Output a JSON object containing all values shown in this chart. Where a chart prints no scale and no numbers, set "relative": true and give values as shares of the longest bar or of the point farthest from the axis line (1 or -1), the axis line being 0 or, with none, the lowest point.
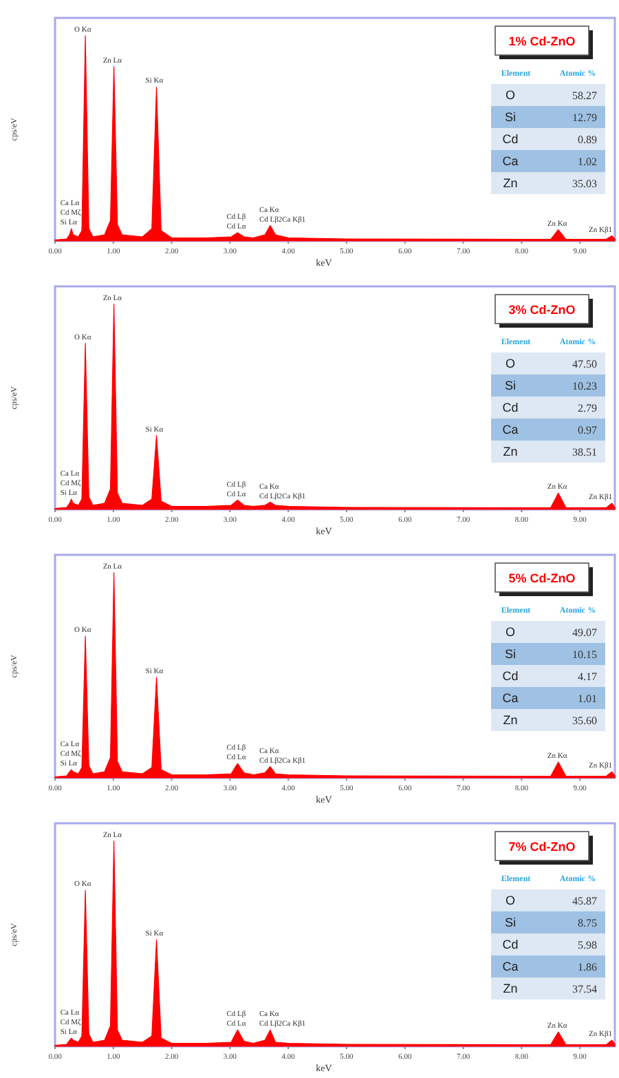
{
  "chart_data": [
    {
      "type": "area",
      "title": "1% Cd-ZnO",
      "xlabel": "keV",
      "ylabel": "cps/eV",
      "relative": true,
      "color": "#ff0000",
      "xlim": [
        0,
        9.6
      ],
      "xticks": [
        {
          "value": 0,
          "label": "0.00"
        },
        {
          "value": 1,
          "label": "1.00"
        },
        {
          "value": 2,
          "label": "2.00"
        },
        {
          "value": 3,
          "label": "3.00"
        },
        {
          "value": 4,
          "label": "4.00"
        },
        {
          "value": 5,
          "label": "5.00"
        },
        {
          "value": 6,
          "label": "6.00"
        },
        {
          "value": 7,
          "label": "7.00"
        },
        {
          "value": 8,
          "label": "8.00"
        },
        {
          "value": 9,
          "label": "9.00"
        }
      ],
      "x": [
        0,
        0.2,
        0.25,
        0.28,
        0.31,
        0.4,
        0.46,
        0.52,
        0.58,
        0.65,
        0.85,
        0.95,
        1.01,
        1.07,
        1.15,
        1.5,
        1.66,
        1.74,
        1.82,
        2.0,
        2.6,
        3.02,
        3.13,
        3.24,
        3.4,
        3.6,
        3.69,
        3.78,
        4.0,
        5.0,
        8.5,
        8.63,
        8.76,
        9.45,
        9.55,
        9.6
      ],
      "values": [
        0.005,
        0.01,
        0.03,
        0.06,
        0.03,
        0.02,
        0.05,
        1,
        0.06,
        0.02,
        0.03,
        0.1,
        0.85,
        0.08,
        0.03,
        0.02,
        0.06,
        0.75,
        0.05,
        0.015,
        0.015,
        0.02,
        0.04,
        0.02,
        0.015,
        0.03,
        0.075,
        0.03,
        0.015,
        0.01,
        0.008,
        0.055,
        0.008,
        0.008,
        0.025,
        0.01
      ],
      "annotations": [
        {
          "text": "O Kα",
          "x": 0.52,
          "y": 1
        },
        {
          "text": "Zn Lα",
          "x": 1.01,
          "y": 0.85
        },
        {
          "text": "Si Kα",
          "x": 1.74,
          "y": 0.75
        },
        {
          "text": "Ca Lα",
          "x": 0.28,
          "y": 0.06
        },
        {
          "text": "Cd Mζ",
          "x": 0.28,
          "y": 0.06
        },
        {
          "text": "Si Lα",
          "x": 0.28,
          "y": 0.06
        },
        {
          "text": "Cd Lβ",
          "x": 3.13,
          "y": 0.04
        },
        {
          "text": "Cd Lα",
          "x": 3.13,
          "y": 0.04
        },
        {
          "text": "Ca Kα",
          "x": 3.69,
          "y": 0.075
        },
        {
          "text": "Cd Lβ2Ca Kβ1",
          "x": 3.69,
          "y": 0.075
        },
        {
          "text": "Zn Kα",
          "x": 8.63,
          "y": 0.055
        },
        {
          "text": "Zn Kβ1",
          "x": 9.55,
          "y": 0.025
        }
      ]
    },
    {
      "type": "other",
      "annotations": [
        "Element",
        "Atomic %",
        "O",
        "58.27",
        "Si",
        "12.79",
        "Cd",
        "0.89",
        "Ca",
        "1.02",
        "Zn",
        "35.03"
      ]
    },
    {
      "type": "area",
      "title": "3% Cd-ZnO",
      "xlabel": "keV",
      "ylabel": "cps/eV",
      "relative": true,
      "color": "#ff0000",
      "xlim": [
        0,
        9.6
      ],
      "xticks": [
        {
          "value": 0,
          "label": "0.00"
        },
        {
          "value": 1,
          "label": "1.00"
        },
        {
          "value": 2,
          "label": "2.00"
        },
        {
          "value": 3,
          "label": "3.00"
        },
        {
          "value": 4,
          "label": "4.00"
        },
        {
          "value": 5,
          "label": "5.00"
        },
        {
          "value": 6,
          "label": "6.00"
        },
        {
          "value": 7,
          "label": "7.00"
        },
        {
          "value": 8,
          "label": "8.00"
        },
        {
          "value": 9,
          "label": "9.00"
        }
      ],
      "x": [
        0,
        0.2,
        0.25,
        0.28,
        0.31,
        0.4,
        0.46,
        0.52,
        0.58,
        0.65,
        0.85,
        0.95,
        1.01,
        1.07,
        1.15,
        1.5,
        1.66,
        1.74,
        1.82,
        2.0,
        2.6,
        3.02,
        3.13,
        3.24,
        3.4,
        3.6,
        3.69,
        3.78,
        4.0,
        5.0,
        8.5,
        8.63,
        8.76,
        9.45,
        9.55,
        9.6
      ],
      "values": [
        0.005,
        0.01,
        0.03,
        0.05,
        0.03,
        0.02,
        0.05,
        0.81,
        0.06,
        0.02,
        0.03,
        0.1,
        1,
        0.08,
        0.03,
        0.02,
        0.05,
        0.36,
        0.04,
        0.015,
        0.015,
        0.02,
        0.045,
        0.02,
        0.015,
        0.02,
        0.035,
        0.02,
        0.015,
        0.01,
        0.008,
        0.08,
        0.008,
        0.008,
        0.03,
        0.01
      ],
      "annotations": [
        {
          "text": "Zn Lα",
          "x": 1.01,
          "y": 1
        },
        {
          "text": "O Kα",
          "x": 0.52,
          "y": 0.81
        },
        {
          "text": "Si Kα",
          "x": 1.74,
          "y": 0.36
        },
        {
          "text": "Ca Lα",
          "x": 0.28,
          "y": 0.05
        },
        {
          "text": "Cd Mζ",
          "x": 0.28,
          "y": 0.05
        },
        {
          "text": "Si Lα",
          "x": 0.28,
          "y": 0.05
        },
        {
          "text": "Cd Lβ",
          "x": 3.13,
          "y": 0.045
        },
        {
          "text": "Cd Lα",
          "x": 3.13,
          "y": 0.045
        },
        {
          "text": "Ca Kα",
          "x": 3.69,
          "y": 0.035
        },
        {
          "text": "Cd Lβ2Ca Kβ1",
          "x": 3.69,
          "y": 0.035
        },
        {
          "text": "Zn Kα",
          "x": 8.63,
          "y": 0.08
        },
        {
          "text": "Zn Kβ1",
          "x": 9.55,
          "y": 0.03
        }
      ]
    },
    {
      "type": "other",
      "annotations": [
        "Element",
        "Atomic %",
        "O",
        "47.50",
        "Si",
        "10.23",
        "Cd",
        "2.79",
        "Ca",
        "0.97",
        "Zn",
        "38.51"
      ]
    },
    {
      "type": "area",
      "title": "5% Cd-ZnO",
      "xlabel": "keV",
      "ylabel": "cps/eV",
      "relative": true,
      "color": "#ff0000",
      "xlim": [
        0,
        9.6
      ],
      "xticks": [
        {
          "value": 0,
          "label": "0.00"
        },
        {
          "value": 1,
          "label": "1.00"
        },
        {
          "value": 2,
          "label": "2.00"
        },
        {
          "value": 3,
          "label": "3.00"
        },
        {
          "value": 4,
          "label": "4.00"
        },
        {
          "value": 5,
          "label": "5.00"
        },
        {
          "value": 6,
          "label": "6.00"
        },
        {
          "value": 7,
          "label": "7.00"
        },
        {
          "value": 8,
          "label": "8.00"
        },
        {
          "value": 9,
          "label": "9.00"
        }
      ],
      "x": [
        0,
        0.2,
        0.25,
        0.28,
        0.31,
        0.4,
        0.46,
        0.52,
        0.58,
        0.65,
        0.85,
        0.95,
        1.01,
        1.07,
        1.15,
        1.5,
        1.66,
        1.74,
        1.82,
        2.0,
        2.6,
        3.02,
        3.13,
        3.24,
        3.4,
        3.6,
        3.69,
        3.78,
        4.0,
        5.0,
        8.5,
        8.63,
        8.76,
        9.45,
        9.55,
        9.6
      ],
      "values": [
        0.005,
        0.01,
        0.03,
        0.04,
        0.03,
        0.02,
        0.05,
        0.69,
        0.06,
        0.02,
        0.03,
        0.1,
        1,
        0.08,
        0.03,
        0.02,
        0.05,
        0.49,
        0.04,
        0.015,
        0.015,
        0.02,
        0.07,
        0.025,
        0.015,
        0.025,
        0.055,
        0.02,
        0.015,
        0.01,
        0.008,
        0.077,
        0.008,
        0.008,
        0.03,
        0.01
      ],
      "annotations": [
        {
          "text": "Zn Lα",
          "x": 1.01,
          "y": 1
        },
        {
          "text": "O Kα",
          "x": 0.52,
          "y": 0.69
        },
        {
          "text": "Si Kα",
          "x": 1.74,
          "y": 0.49
        },
        {
          "text": "Ca Lα",
          "x": 0.28,
          "y": 0.04
        },
        {
          "text": "Cd Mζ",
          "x": 0.28,
          "y": 0.04
        },
        {
          "text": "Si Lα",
          "x": 0.28,
          "y": 0.04
        },
        {
          "text": "Cd Lβ",
          "x": 3.13,
          "y": 0.07
        },
        {
          "text": "Cd Lα",
          "x": 3.13,
          "y": 0.07
        },
        {
          "text": "Ca Kα",
          "x": 3.69,
          "y": 0.055
        },
        {
          "text": "Cd Lβ2Ca Kβ1",
          "x": 3.69,
          "y": 0.055
        },
        {
          "text": "Zn Kα",
          "x": 8.63,
          "y": 0.077
        },
        {
          "text": "Zn Kβ1",
          "x": 9.55,
          "y": 0.03
        }
      ]
    },
    {
      "type": "other",
      "annotations": [
        "Element",
        "Atomic %",
        "O",
        "49.07",
        "Si",
        "10.15",
        "Cd",
        "4.17",
        "Ca",
        "1.01",
        "Zn",
        "35.60"
      ]
    },
    {
      "type": "area",
      "title": "7% Cd-ZnO",
      "xlabel": "keV",
      "ylabel": "cps/eV",
      "relative": true,
      "color": "#ff0000",
      "xlim": [
        0,
        9.6
      ],
      "xticks": [
        {
          "value": 0,
          "label": "0.00"
        },
        {
          "value": 1,
          "label": "1.00"
        },
        {
          "value": 2,
          "label": "2.00"
        },
        {
          "value": 3,
          "label": "3.00"
        },
        {
          "value": 4,
          "label": "4.00"
        },
        {
          "value": 5,
          "label": "5.00"
        },
        {
          "value": 6,
          "label": "6.00"
        },
        {
          "value": 7,
          "label": "7.00"
        },
        {
          "value": 8,
          "label": "8.00"
        },
        {
          "value": 9,
          "label": "9.00"
        }
      ],
      "x": [
        0,
        0.2,
        0.25,
        0.28,
        0.31,
        0.4,
        0.46,
        0.52,
        0.58,
        0.65,
        0.85,
        0.95,
        1.01,
        1.07,
        1.15,
        1.5,
        1.66,
        1.74,
        1.82,
        2.0,
        2.6,
        3.02,
        3.13,
        3.24,
        3.4,
        3.6,
        3.69,
        3.78,
        4.0,
        5.0,
        8.5,
        8.63,
        8.76,
        9.45,
        9.55,
        9.6
      ],
      "values": [
        0.005,
        0.01,
        0.03,
        0.04,
        0.03,
        0.02,
        0.05,
        0.76,
        0.06,
        0.02,
        0.03,
        0.1,
        1,
        0.08,
        0.03,
        0.02,
        0.05,
        0.52,
        0.04,
        0.015,
        0.015,
        0.02,
        0.08,
        0.025,
        0.015,
        0.03,
        0.08,
        0.02,
        0.015,
        0.01,
        0.008,
        0.07,
        0.008,
        0.008,
        0.03,
        0.01
      ],
      "annotations": [
        {
          "text": "Zn Lα",
          "x": 1.01,
          "y": 1
        },
        {
          "text": "O Kα",
          "x": 0.52,
          "y": 0.76
        },
        {
          "text": "Si Kα",
          "x": 1.74,
          "y": 0.52
        },
        {
          "text": "Ca Lα",
          "x": 0.28,
          "y": 0.04
        },
        {
          "text": "Cd Mζ",
          "x": 0.28,
          "y": 0.04
        },
        {
          "text": "Si Lα",
          "x": 0.28,
          "y": 0.04
        },
        {
          "text": "Cd Lβ",
          "x": 3.13,
          "y": 0.08
        },
        {
          "text": "Cd Lα",
          "x": 3.13,
          "y": 0.08
        },
        {
          "text": "Ca Kα",
          "x": 3.69,
          "y": 0.08
        },
        {
          "text": "Cd Lβ2Ca Kβ1",
          "x": 3.69,
          "y": 0.08
        },
        {
          "text": "Zn Kα",
          "x": 8.63,
          "y": 0.07
        },
        {
          "text": "Zn Kβ1",
          "x": 9.55,
          "y": 0.03
        }
      ]
    },
    {
      "type": "other",
      "annotations": [
        "Element",
        "Atomic %",
        "O",
        "45.87",
        "Si",
        "8.75",
        "Cd",
        "5.98",
        "Ca",
        "1.86",
        "Zn",
        "37.54"
      ]
    }
  ]
}
